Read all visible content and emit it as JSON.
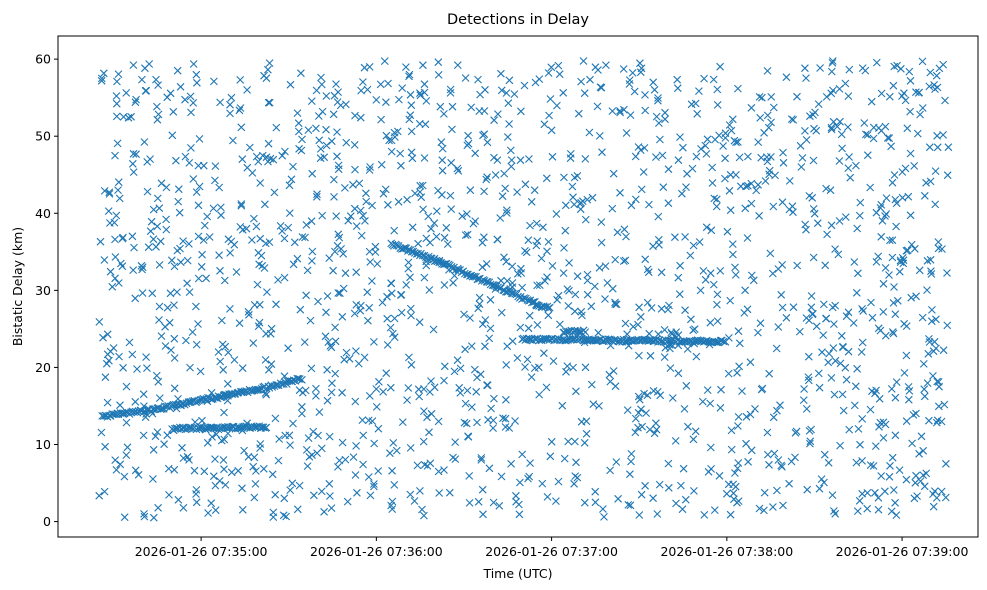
{
  "chart_data": {
    "type": "scatter",
    "title": "Detections in Delay",
    "xlabel": "Time (UTC)",
    "ylabel": "Bistatic Delay (km)",
    "marker": "x",
    "marker_color": "#1f77b4",
    "grid": false,
    "legend": "none",
    "xlim": [
      "2026-01-26 07:34:11",
      "2026-01-26 07:39:26"
    ],
    "ylim": [
      -2,
      63
    ],
    "x_ticks": [
      "2026-01-26 07:35:00",
      "2026-01-26 07:36:00",
      "2026-01-26 07:37:00",
      "2026-01-26 07:38:00",
      "2026-01-26 07:39:00"
    ],
    "y_ticks": [
      0,
      10,
      20,
      30,
      40,
      50,
      60
    ],
    "series": [
      {
        "kind": "noise",
        "x_range": [
          "2026-01-26 07:34:25",
          "2026-01-26 07:39:16"
        ],
        "y_range": [
          0.5,
          59.8
        ],
        "approx_count": 1700,
        "samples": [
          [
            "2026-01-26 07:34:26",
            57.5
          ],
          [
            "2026-01-26 07:34:27",
            42.9
          ],
          [
            "2026-01-26 07:34:28",
            24.3
          ],
          [
            "2026-01-26 07:34:31",
            6.7
          ],
          [
            "2026-01-26 07:34:40",
            33.0
          ],
          [
            "2026-01-26 07:34:52",
            58.5
          ],
          [
            "2026-01-26 07:35:20",
            25.8
          ],
          [
            "2026-01-26 07:35:54",
            20.5
          ],
          [
            "2026-01-26 07:36:16",
            40.5
          ],
          [
            "2026-01-26 07:36:45",
            49.9
          ],
          [
            "2026-01-26 07:37:15",
            2.5
          ],
          [
            "2026-01-26 07:37:44",
            33.2
          ],
          [
            "2026-01-26 07:38:12",
            55.0
          ],
          [
            "2026-01-26 07:38:40",
            14.4
          ],
          [
            "2026-01-26 07:39:07",
            59.7
          ],
          [
            "2026-01-26 07:39:15",
            7.5
          ]
        ]
      },
      {
        "kind": "track",
        "points": [
          [
            "2026-01-26 07:34:26",
            13.6
          ],
          [
            "2026-01-26 07:34:45",
            14.6
          ],
          [
            "2026-01-26 07:35:05",
            16.1
          ],
          [
            "2026-01-26 07:35:25",
            17.6
          ],
          [
            "2026-01-26 07:35:35",
            18.6
          ]
        ]
      },
      {
        "kind": "track",
        "points": [
          [
            "2026-01-26 07:36:05",
            36.0
          ],
          [
            "2026-01-26 07:36:20",
            34.0
          ],
          [
            "2026-01-26 07:36:35",
            31.5
          ],
          [
            "2026-01-26 07:36:50",
            29.0
          ],
          [
            "2026-01-26 07:37:00",
            27.5
          ]
        ]
      },
      {
        "kind": "track",
        "points": [
          [
            "2026-01-26 07:34:50",
            12.0
          ],
          [
            "2026-01-26 07:35:03",
            12.2
          ],
          [
            "2026-01-26 07:35:07",
            12.1
          ],
          [
            "2026-01-26 07:35:23",
            12.3
          ]
        ]
      },
      {
        "kind": "track",
        "points": [
          [
            "2026-01-26 07:37:04",
            24.6
          ],
          [
            "2026-01-26 07:37:12",
            24.7
          ]
        ]
      },
      {
        "kind": "track",
        "points": [
          [
            "2026-01-26 07:36:50",
            23.6
          ],
          [
            "2026-01-26 07:37:05",
            23.6
          ],
          [
            "2026-01-26 07:37:20",
            23.5
          ],
          [
            "2026-01-26 07:38:00",
            23.4
          ]
        ]
      }
    ]
  }
}
